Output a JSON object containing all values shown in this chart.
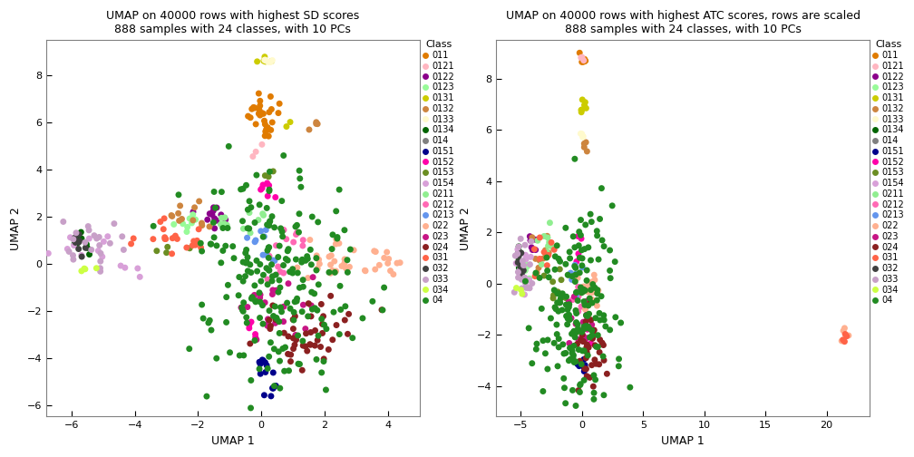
{
  "title1": "UMAP on 40000 rows with highest SD scores\n888 samples with 24 classes, with 10 PCs",
  "title2": "UMAP on 40000 rows with highest ATC scores, rows are scaled\n888 samples with 24 classes, with 10 PCs",
  "xlabel": "UMAP 1",
  "ylabel": "UMAP 2",
  "classes": [
    "011",
    "0121",
    "0122",
    "0123",
    "0131",
    "0132",
    "0133",
    "0134",
    "014",
    "0151",
    "0152",
    "0153",
    "0154",
    "0211",
    "0212",
    "0213",
    "022",
    "023",
    "024",
    "031",
    "032",
    "033",
    "034",
    "04"
  ],
  "colors": {
    "011": "#E07B00",
    "0121": "#FFB6C1",
    "0122": "#8B008B",
    "0123": "#98FB98",
    "0131": "#CCCC00",
    "0132": "#CD853F",
    "0133": "#FFFACD",
    "0134": "#006400",
    "014": "#808080",
    "0151": "#00008B",
    "0152": "#FF00AA",
    "0153": "#6B8E23",
    "0154": "#D8A0D8",
    "0211": "#90EE90",
    "0212": "#FF69B4",
    "0213": "#6495ED",
    "022": "#FFB090",
    "023": "#C71585",
    "024": "#8B2020",
    "031": "#FF6347",
    "032": "#404040",
    "033": "#C8A0C8",
    "034": "#CCFF44",
    "04": "#228B22"
  },
  "plot1_xlim": [
    -6.8,
    5.0
  ],
  "plot1_ylim": [
    -6.5,
    9.5
  ],
  "plot1_xticks": [
    -6,
    -4,
    -2,
    0,
    2,
    4
  ],
  "plot1_yticks": [
    -6,
    -4,
    -2,
    0,
    2,
    4,
    6,
    8
  ],
  "plot2_xlim": [
    -7.0,
    23.5
  ],
  "plot2_ylim": [
    -5.2,
    9.5
  ],
  "plot2_xticks": [
    -5,
    0,
    5,
    10,
    15,
    20
  ],
  "plot2_yticks": [
    -4,
    -2,
    0,
    2,
    4,
    6,
    8
  ],
  "point_size": 25,
  "seed": 42
}
